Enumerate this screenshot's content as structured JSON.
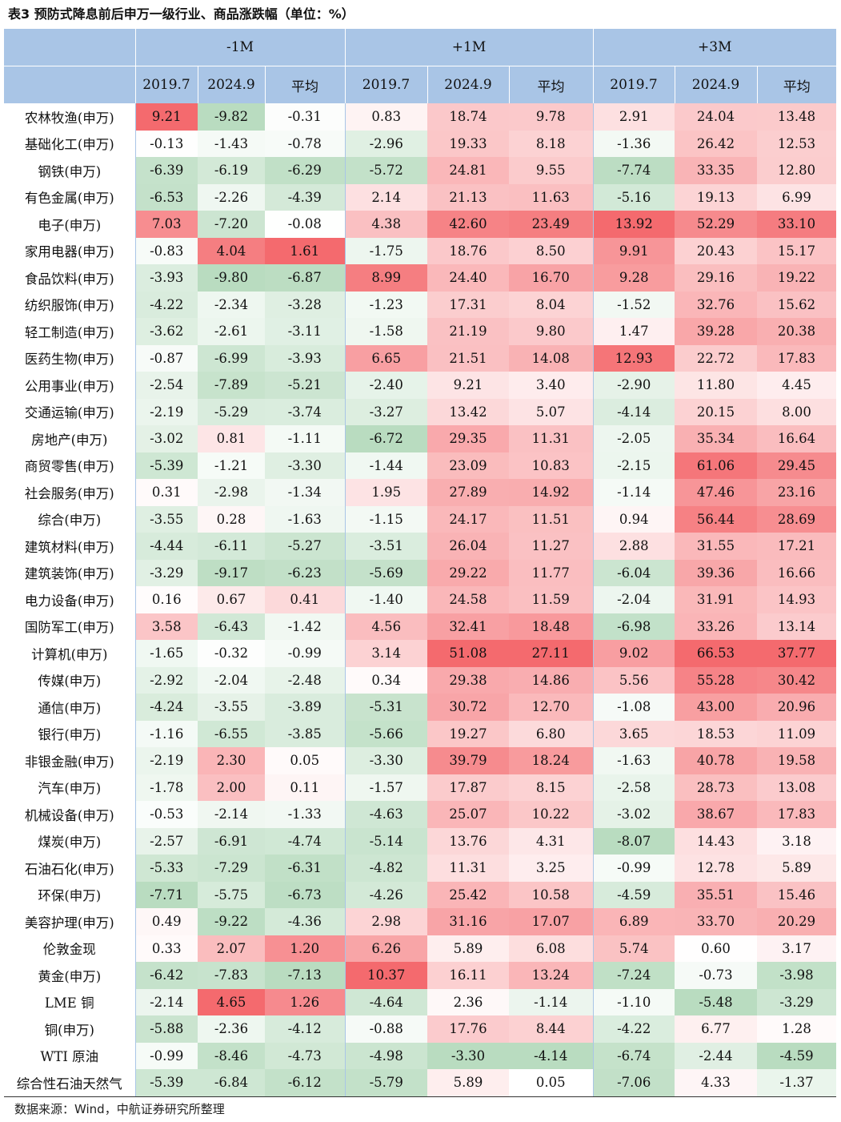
{
  "title": "表3 预防式降息前后申万一级行业、商品涨跌幅（单位：%）",
  "header": {
    "groups": [
      "-1M",
      "+1M",
      "+3M"
    ],
    "subcolumns": [
      "2019.7",
      "2024.9",
      "平均"
    ]
  },
  "rows": [
    {
      "name": "农林牧渔(申万)",
      "v": [
        "9.21",
        "-9.82",
        "-0.31",
        "0.83",
        "18.74",
        "9.78",
        "2.91",
        "24.04",
        "13.48"
      ]
    },
    {
      "name": "基础化工(申万)",
      "v": [
        "-0.13",
        "-1.43",
        "-0.78",
        "-2.96",
        "19.33",
        "8.18",
        "-1.36",
        "26.42",
        "12.53"
      ]
    },
    {
      "name": "钢铁(申万)",
      "v": [
        "-6.39",
        "-6.19",
        "-6.29",
        "-5.72",
        "24.81",
        "9.55",
        "-7.74",
        "33.35",
        "12.80"
      ]
    },
    {
      "name": "有色金属(申万)",
      "v": [
        "-6.53",
        "-2.26",
        "-4.39",
        "2.14",
        "21.13",
        "11.63",
        "-5.16",
        "19.13",
        "6.99"
      ]
    },
    {
      "name": "电子(申万)",
      "v": [
        "7.03",
        "-7.20",
        "-0.08",
        "4.38",
        "42.60",
        "23.49",
        "13.92",
        "52.29",
        "33.10"
      ]
    },
    {
      "name": "家用电器(申万)",
      "v": [
        "-0.83",
        "4.04",
        "1.61",
        "-1.75",
        "18.76",
        "8.50",
        "9.91",
        "20.43",
        "15.17"
      ]
    },
    {
      "name": "食品饮料(申万)",
      "v": [
        "-3.93",
        "-9.80",
        "-6.87",
        "8.99",
        "24.40",
        "16.70",
        "9.28",
        "29.16",
        "19.22"
      ]
    },
    {
      "name": "纺织服饰(申万)",
      "v": [
        "-4.22",
        "-2.34",
        "-3.28",
        "-1.23",
        "17.31",
        "8.04",
        "-1.52",
        "32.76",
        "15.62"
      ]
    },
    {
      "name": "轻工制造(申万)",
      "v": [
        "-3.62",
        "-2.61",
        "-3.11",
        "-1.58",
        "21.19",
        "9.80",
        "1.47",
        "39.28",
        "20.38"
      ]
    },
    {
      "name": "医药生物(申万)",
      "v": [
        "-0.87",
        "-6.99",
        "-3.93",
        "6.65",
        "21.51",
        "14.08",
        "12.93",
        "22.72",
        "17.83"
      ]
    },
    {
      "name": "公用事业(申万)",
      "v": [
        "-2.54",
        "-7.89",
        "-5.21",
        "-2.40",
        "9.21",
        "3.40",
        "-2.90",
        "11.80",
        "4.45"
      ]
    },
    {
      "name": "交通运输(申万)",
      "v": [
        "-2.19",
        "-5.29",
        "-3.74",
        "-3.27",
        "13.42",
        "5.07",
        "-4.14",
        "20.15",
        "8.00"
      ]
    },
    {
      "name": "房地产(申万)",
      "v": [
        "-3.02",
        "0.81",
        "-1.11",
        "-6.72",
        "29.35",
        "11.31",
        "-2.05",
        "35.34",
        "16.64"
      ]
    },
    {
      "name": "商贸零售(申万)",
      "v": [
        "-5.39",
        "-1.21",
        "-3.30",
        "-1.44",
        "23.09",
        "10.83",
        "-2.15",
        "61.06",
        "29.45"
      ]
    },
    {
      "name": "社会服务(申万)",
      "v": [
        "0.31",
        "-2.98",
        "-1.34",
        "1.95",
        "27.89",
        "14.92",
        "-1.14",
        "47.46",
        "23.16"
      ]
    },
    {
      "name": "综合(申万)",
      "v": [
        "-3.55",
        "0.28",
        "-1.63",
        "-1.15",
        "24.17",
        "11.51",
        "0.94",
        "56.44",
        "28.69"
      ]
    },
    {
      "name": "建筑材料(申万)",
      "v": [
        "-4.44",
        "-6.11",
        "-5.27",
        "-3.51",
        "26.04",
        "11.27",
        "2.88",
        "31.55",
        "17.21"
      ]
    },
    {
      "name": "建筑装饰(申万)",
      "v": [
        "-3.29",
        "-9.17",
        "-6.23",
        "-5.69",
        "29.22",
        "11.77",
        "-6.04",
        "39.36",
        "16.66"
      ]
    },
    {
      "name": "电力设备(申万)",
      "v": [
        "0.16",
        "0.67",
        "0.41",
        "-1.40",
        "24.58",
        "11.59",
        "-2.04",
        "31.91",
        "14.93"
      ]
    },
    {
      "name": "国防军工(申万)",
      "v": [
        "3.58",
        "-6.43",
        "-1.42",
        "4.56",
        "32.41",
        "18.48",
        "-6.98",
        "33.26",
        "13.14"
      ]
    },
    {
      "name": "计算机(申万)",
      "v": [
        "-1.65",
        "-0.32",
        "-0.99",
        "3.14",
        "51.08",
        "27.11",
        "9.02",
        "66.53",
        "37.77"
      ]
    },
    {
      "name": "传媒(申万)",
      "v": [
        "-2.92",
        "-2.04",
        "-2.48",
        "0.34",
        "29.38",
        "14.86",
        "5.56",
        "55.28",
        "30.42"
      ]
    },
    {
      "name": "通信(申万)",
      "v": [
        "-4.24",
        "-3.55",
        "-3.89",
        "-5.31",
        "30.72",
        "12.70",
        "-1.08",
        "43.00",
        "20.96"
      ]
    },
    {
      "name": "银行(申万)",
      "v": [
        "-1.16",
        "-6.55",
        "-3.85",
        "-5.66",
        "19.27",
        "6.80",
        "3.65",
        "18.53",
        "11.09"
      ]
    },
    {
      "name": "非银金融(申万)",
      "v": [
        "-2.19",
        "2.30",
        "0.05",
        "-3.30",
        "39.79",
        "18.24",
        "-1.63",
        "40.78",
        "19.58"
      ]
    },
    {
      "name": "汽车(申万)",
      "v": [
        "-1.78",
        "2.00",
        "0.11",
        "-1.57",
        "17.87",
        "8.15",
        "-2.58",
        "28.73",
        "13.08"
      ]
    },
    {
      "name": "机械设备(申万)",
      "v": [
        "-0.53",
        "-2.14",
        "-1.33",
        "-4.63",
        "25.07",
        "10.22",
        "-3.02",
        "38.67",
        "17.83"
      ]
    },
    {
      "name": "煤炭(申万)",
      "v": [
        "-2.57",
        "-6.91",
        "-4.74",
        "-5.14",
        "13.76",
        "4.31",
        "-8.07",
        "14.43",
        "3.18"
      ]
    },
    {
      "name": "石油石化(申万)",
      "v": [
        "-5.33",
        "-7.29",
        "-6.31",
        "-4.82",
        "11.31",
        "3.25",
        "-0.99",
        "12.78",
        "5.89"
      ]
    },
    {
      "name": "环保(申万)",
      "v": [
        "-7.71",
        "-5.75",
        "-6.73",
        "-4.26",
        "25.42",
        "10.58",
        "-4.59",
        "35.51",
        "15.46"
      ]
    },
    {
      "name": "美容护理(申万)",
      "v": [
        "0.49",
        "-9.22",
        "-4.36",
        "2.98",
        "31.16",
        "17.07",
        "6.89",
        "33.70",
        "20.29"
      ]
    },
    {
      "name": "伦敦金现",
      "v": [
        "0.33",
        "2.07",
        "1.20",
        "6.26",
        "5.89",
        "6.08",
        "5.74",
        "0.60",
        "3.17"
      ]
    },
    {
      "name": "黄金(申万)",
      "v": [
        "-6.42",
        "-7.83",
        "-7.13",
        "10.37",
        "16.11",
        "13.24",
        "-7.24",
        "-0.73",
        "-3.98"
      ]
    },
    {
      "name": "LME 铜",
      "v": [
        "-2.14",
        "4.65",
        "1.26",
        "-4.64",
        "2.36",
        "-1.14",
        "-1.10",
        "-5.48",
        "-3.29"
      ]
    },
    {
      "name": "铜(申万)",
      "v": [
        "-5.88",
        "-2.36",
        "-4.12",
        "-0.88",
        "17.76",
        "8.44",
        "-4.22",
        "6.77",
        "1.28"
      ]
    },
    {
      "name": "WTI 原油",
      "v": [
        "-0.99",
        "-8.46",
        "-4.73",
        "-4.98",
        "-3.30",
        "-4.14",
        "-6.74",
        "-2.44",
        "-4.59"
      ]
    },
    {
      "name": "综合性石油天然气",
      "v": [
        "-5.39",
        "-6.84",
        "-6.12",
        "-5.79",
        "5.89",
        "0.05",
        "-7.06",
        "4.33",
        "-1.37"
      ]
    }
  ],
  "colors": {
    "header_bg": "#a9c5e6",
    "positive_max": "#f46a6e",
    "negative_max": "#b9dcc0",
    "neutral": "#ffffff"
  },
  "source": "数据来源：Wind，中航证券研究所整理"
}
